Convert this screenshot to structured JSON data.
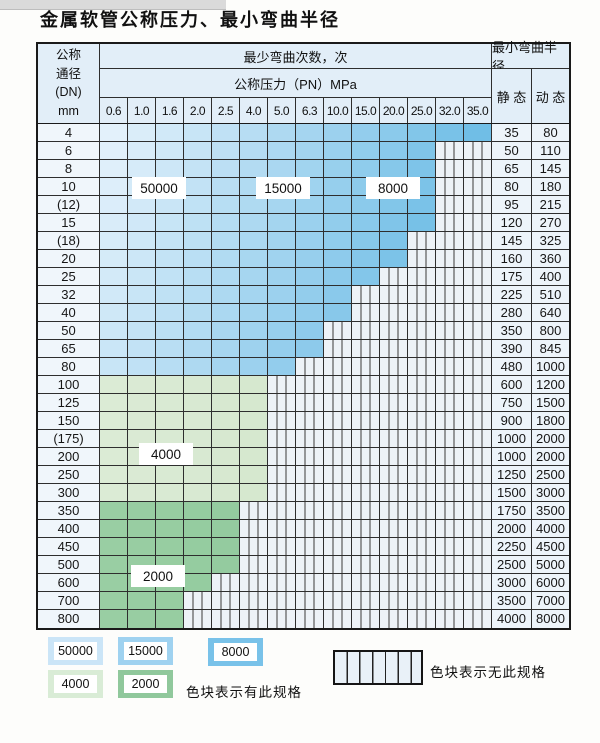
{
  "page": {
    "title": "金属软管公称压力、最小弯曲半径"
  },
  "table": {
    "dn_header_lines": [
      "公称",
      "通径",
      "(DN)",
      "mm"
    ],
    "cycles_header": "最少弯曲次数，次",
    "pn_header": "公称压力（PN）MPa",
    "radius_header": "最小弯曲半径",
    "static_header": "静 态",
    "dynamic_header": "动 态"
  },
  "chart_data": {
    "type": "table",
    "title": "金属软管公称压力、最小弯曲半径",
    "pn_columns_mpa": [
      "0.6",
      "1.0",
      "1.6",
      "2.0",
      "2.5",
      "4.0",
      "5.0",
      "6.3",
      "10.0",
      "15.0",
      "20.0",
      "25.0",
      "32.0",
      "35.0"
    ],
    "legend_note": "colored cell = specification exists for that DN/PN; hatched cell = no specification; color shade encodes minimum bend cycles",
    "cycle_zones": [
      {
        "cycles": "50000",
        "color": "#cbe5f7",
        "zone": "blue-light"
      },
      {
        "cycles": "15000",
        "color": "#9fd2f0",
        "zone": "blue-medium"
      },
      {
        "cycles": "8000",
        "color": "#79c2e9",
        "zone": "blue-dark"
      },
      {
        "cycles": "4000",
        "color": "#d9ecd6",
        "zone": "green-light"
      },
      {
        "cycles": "2000",
        "color": "#90c89c",
        "zone": "green-dark"
      }
    ],
    "rows": [
      {
        "dn": "4",
        "max_pn": "35.0",
        "spec_cols": 14,
        "zone": "blue",
        "static": "35",
        "dynamic": "80"
      },
      {
        "dn": "6",
        "max_pn": "25.0",
        "spec_cols": 12,
        "zone": "blue",
        "static": "50",
        "dynamic": "110"
      },
      {
        "dn": "8",
        "max_pn": "25.0",
        "spec_cols": 12,
        "zone": "blue",
        "static": "65",
        "dynamic": "145"
      },
      {
        "dn": "10",
        "max_pn": "25.0",
        "spec_cols": 12,
        "zone": "blue",
        "static": "80",
        "dynamic": "180"
      },
      {
        "dn": "(12)",
        "max_pn": "25.0",
        "spec_cols": 12,
        "zone": "blue",
        "static": "95",
        "dynamic": "215"
      },
      {
        "dn": "15",
        "max_pn": "25.0",
        "spec_cols": 12,
        "zone": "blue",
        "static": "120",
        "dynamic": "270"
      },
      {
        "dn": "(18)",
        "max_pn": "20.0",
        "spec_cols": 11,
        "zone": "blue",
        "static": "145",
        "dynamic": "325"
      },
      {
        "dn": "20",
        "max_pn": "20.0",
        "spec_cols": 11,
        "zone": "blue",
        "static": "160",
        "dynamic": "360"
      },
      {
        "dn": "25",
        "max_pn": "15.0",
        "spec_cols": 10,
        "zone": "blue",
        "static": "175",
        "dynamic": "400"
      },
      {
        "dn": "32",
        "max_pn": "10.0",
        "spec_cols": 9,
        "zone": "blue",
        "static": "225",
        "dynamic": "510"
      },
      {
        "dn": "40",
        "max_pn": "10.0",
        "spec_cols": 9,
        "zone": "blue",
        "static": "280",
        "dynamic": "640"
      },
      {
        "dn": "50",
        "max_pn": "6.3",
        "spec_cols": 8,
        "zone": "blue",
        "static": "350",
        "dynamic": "800"
      },
      {
        "dn": "65",
        "max_pn": "6.3",
        "spec_cols": 8,
        "zone": "blue",
        "static": "390",
        "dynamic": "845"
      },
      {
        "dn": "80",
        "max_pn": "5.0",
        "spec_cols": 7,
        "zone": "blue",
        "static": "480",
        "dynamic": "1000"
      },
      {
        "dn": "100",
        "max_pn": "4.0",
        "spec_cols": 6,
        "zone": "green-light",
        "static": "600",
        "dynamic": "1200"
      },
      {
        "dn": "125",
        "max_pn": "4.0",
        "spec_cols": 6,
        "zone": "green-light",
        "static": "750",
        "dynamic": "1500"
      },
      {
        "dn": "150",
        "max_pn": "4.0",
        "spec_cols": 6,
        "zone": "green-light",
        "static": "900",
        "dynamic": "1800"
      },
      {
        "dn": "(175)",
        "max_pn": "4.0",
        "spec_cols": 6,
        "zone": "green-light",
        "static": "1000",
        "dynamic": "2000"
      },
      {
        "dn": "200",
        "max_pn": "4.0",
        "spec_cols": 6,
        "zone": "green-light",
        "static": "1000",
        "dynamic": "2000"
      },
      {
        "dn": "250",
        "max_pn": "4.0",
        "spec_cols": 6,
        "zone": "green-light",
        "static": "1250",
        "dynamic": "2500"
      },
      {
        "dn": "300",
        "max_pn": "4.0",
        "spec_cols": 6,
        "zone": "green-light",
        "static": "1500",
        "dynamic": "3000"
      },
      {
        "dn": "350",
        "max_pn": "2.5",
        "spec_cols": 5,
        "zone": "green-dark",
        "static": "1750",
        "dynamic": "3500"
      },
      {
        "dn": "400",
        "max_pn": "2.5",
        "spec_cols": 5,
        "zone": "green-dark",
        "static": "2000",
        "dynamic": "4000"
      },
      {
        "dn": "450",
        "max_pn": "2.5",
        "spec_cols": 5,
        "zone": "green-dark",
        "static": "2250",
        "dynamic": "4500"
      },
      {
        "dn": "500",
        "max_pn": "2.5",
        "spec_cols": 5,
        "zone": "green-dark",
        "static": "2500",
        "dynamic": "5000"
      },
      {
        "dn": "600",
        "max_pn": "2.0",
        "spec_cols": 4,
        "zone": "green-dark",
        "static": "3000",
        "dynamic": "6000"
      },
      {
        "dn": "700",
        "max_pn": "1.6",
        "spec_cols": 3,
        "zone": "green-dark",
        "static": "3500",
        "dynamic": "7000"
      },
      {
        "dn": "800",
        "max_pn": "1.6",
        "spec_cols": 3,
        "zone": "green-dark",
        "static": "4000",
        "dynamic": "8000"
      }
    ],
    "overlay_labels": [
      "50000",
      "15000",
      "8000",
      "4000",
      "2000"
    ]
  },
  "legend": {
    "items": [
      {
        "label": "50000",
        "color": "#cbe5f7"
      },
      {
        "label": "15000",
        "color": "#9fd2f0"
      },
      {
        "label": "8000",
        "color": "#79c2e9"
      },
      {
        "label": "4000",
        "color": "#d9ecd6"
      },
      {
        "label": "2000",
        "color": "#90c89c"
      }
    ],
    "has_spec_text": "色块表示有此规格",
    "no_spec_text": "色块表示无此规格"
  }
}
